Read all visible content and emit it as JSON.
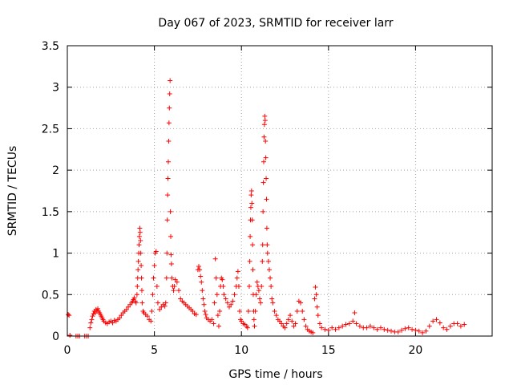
{
  "chart_data": {
    "type": "scatter",
    "title": "Day 067 of 2023, SRMTID for receiver larr",
    "xlabel": "GPS time / hours",
    "ylabel": "SRMTID / TECUs",
    "xlim": [
      0,
      24.4
    ],
    "ylim": [
      0,
      3.5
    ],
    "xticks": [
      0,
      5,
      10,
      15,
      20
    ],
    "xtick_labels": [
      "0",
      "5",
      "10",
      "15",
      "20"
    ],
    "yticks": [
      0,
      0.5,
      1,
      1.5,
      2,
      2.5,
      3,
      3.5
    ],
    "ytick_labels": [
      "0",
      "0.5",
      "1",
      "1.5",
      "2",
      "2.5",
      "3",
      "3.5"
    ],
    "grid": true,
    "marker": "+",
    "color": "#ff0000",
    "series": [
      {
        "name": "SRMTID",
        "points": [
          [
            0.05,
            0.26
          ],
          [
            0.1,
            0.25
          ],
          [
            0.15,
            0.01
          ],
          [
            0.5,
            0.0
          ],
          [
            0.6,
            0.0
          ],
          [
            0.7,
            0.0
          ],
          [
            1.0,
            0.0
          ],
          [
            1.1,
            0.0
          ],
          [
            1.2,
            0.0
          ],
          [
            1.3,
            0.1
          ],
          [
            1.35,
            0.16
          ],
          [
            1.4,
            0.2
          ],
          [
            1.45,
            0.24
          ],
          [
            1.5,
            0.27
          ],
          [
            1.55,
            0.3
          ],
          [
            1.6,
            0.28
          ],
          [
            1.65,
            0.32
          ],
          [
            1.7,
            0.3
          ],
          [
            1.75,
            0.33
          ],
          [
            1.8,
            0.3
          ],
          [
            1.85,
            0.28
          ],
          [
            1.9,
            0.26
          ],
          [
            1.95,
            0.24
          ],
          [
            2.0,
            0.22
          ],
          [
            2.05,
            0.2
          ],
          [
            2.1,
            0.18
          ],
          [
            2.2,
            0.16
          ],
          [
            2.3,
            0.15
          ],
          [
            2.4,
            0.17
          ],
          [
            2.5,
            0.18
          ],
          [
            2.6,
            0.16
          ],
          [
            2.7,
            0.19
          ],
          [
            2.8,
            0.18
          ],
          [
            2.9,
            0.2
          ],
          [
            3.0,
            0.22
          ],
          [
            3.1,
            0.25
          ],
          [
            3.2,
            0.28
          ],
          [
            3.3,
            0.3
          ],
          [
            3.4,
            0.32
          ],
          [
            3.5,
            0.35
          ],
          [
            3.6,
            0.38
          ],
          [
            3.7,
            0.4
          ],
          [
            3.75,
            0.42
          ],
          [
            3.8,
            0.44
          ],
          [
            3.85,
            0.46
          ],
          [
            3.9,
            0.42
          ],
          [
            3.95,
            0.4
          ],
          [
            4.0,
            0.5
          ],
          [
            4.02,
            0.6
          ],
          [
            4.04,
            0.7
          ],
          [
            4.06,
            0.8
          ],
          [
            4.08,
            0.9
          ],
          [
            4.1,
            1.0
          ],
          [
            4.12,
            1.1
          ],
          [
            4.14,
            1.2
          ],
          [
            4.16,
            1.3
          ],
          [
            4.18,
            1.25
          ],
          [
            4.2,
            1.15
          ],
          [
            4.22,
            1.0
          ],
          [
            4.24,
            0.85
          ],
          [
            4.26,
            0.7
          ],
          [
            4.28,
            0.55
          ],
          [
            4.3,
            0.4
          ],
          [
            4.35,
            0.3
          ],
          [
            4.4,
            0.28
          ],
          [
            4.5,
            0.26
          ],
          [
            4.6,
            0.24
          ],
          [
            4.7,
            0.2
          ],
          [
            4.8,
            0.18
          ],
          [
            4.85,
            0.3
          ],
          [
            4.9,
            0.5
          ],
          [
            4.95,
            0.7
          ],
          [
            5.0,
            0.85
          ],
          [
            5.05,
            1.0
          ],
          [
            5.1,
            1.02
          ],
          [
            5.15,
            0.6
          ],
          [
            5.2,
            0.4
          ],
          [
            5.3,
            0.32
          ],
          [
            5.4,
            0.35
          ],
          [
            5.5,
            0.38
          ],
          [
            5.6,
            0.36
          ],
          [
            5.65,
            0.4
          ],
          [
            5.7,
            0.7
          ],
          [
            5.72,
            1.0
          ],
          [
            5.74,
            1.4
          ],
          [
            5.76,
            1.7
          ],
          [
            5.78,
            1.9
          ],
          [
            5.8,
            2.1
          ],
          [
            5.82,
            2.35
          ],
          [
            5.84,
            2.57
          ],
          [
            5.86,
            2.75
          ],
          [
            5.88,
            2.92
          ],
          [
            5.9,
            3.08
          ],
          [
            5.92,
            1.5
          ],
          [
            5.94,
            1.2
          ],
          [
            5.96,
            0.98
          ],
          [
            5.98,
            0.87
          ],
          [
            6.0,
            0.7
          ],
          [
            6.05,
            0.6
          ],
          [
            6.1,
            0.55
          ],
          [
            6.15,
            0.6
          ],
          [
            6.2,
            0.68
          ],
          [
            6.3,
            0.65
          ],
          [
            6.4,
            0.55
          ],
          [
            6.5,
            0.45
          ],
          [
            6.6,
            0.42
          ],
          [
            6.7,
            0.4
          ],
          [
            6.8,
            0.38
          ],
          [
            6.9,
            0.36
          ],
          [
            7.0,
            0.34
          ],
          [
            7.1,
            0.32
          ],
          [
            7.2,
            0.3
          ],
          [
            7.3,
            0.27
          ],
          [
            7.4,
            0.26
          ],
          [
            7.5,
            0.8
          ],
          [
            7.55,
            0.84
          ],
          [
            7.6,
            0.8
          ],
          [
            7.65,
            0.72
          ],
          [
            7.7,
            0.65
          ],
          [
            7.75,
            0.55
          ],
          [
            7.8,
            0.45
          ],
          [
            7.85,
            0.38
          ],
          [
            7.9,
            0.3
          ],
          [
            7.95,
            0.26
          ],
          [
            8.0,
            0.22
          ],
          [
            8.1,
            0.2
          ],
          [
            8.2,
            0.18
          ],
          [
            8.3,
            0.2
          ],
          [
            8.4,
            0.15
          ],
          [
            8.45,
            0.4
          ],
          [
            8.5,
            0.93
          ],
          [
            8.55,
            0.7
          ],
          [
            8.6,
            0.5
          ],
          [
            8.65,
            0.25
          ],
          [
            8.7,
            0.12
          ],
          [
            8.75,
            0.3
          ],
          [
            8.8,
            0.6
          ],
          [
            8.85,
            0.7
          ],
          [
            8.9,
            0.68
          ],
          [
            8.95,
            0.6
          ],
          [
            9.0,
            0.5
          ],
          [
            9.1,
            0.45
          ],
          [
            9.2,
            0.4
          ],
          [
            9.3,
            0.35
          ],
          [
            9.4,
            0.38
          ],
          [
            9.5,
            0.42
          ],
          [
            9.6,
            0.5
          ],
          [
            9.7,
            0.6
          ],
          [
            9.75,
            0.7
          ],
          [
            9.8,
            0.78
          ],
          [
            9.85,
            0.6
          ],
          [
            9.9,
            0.3
          ],
          [
            9.95,
            0.2
          ],
          [
            10.0,
            0.18
          ],
          [
            10.1,
            0.15
          ],
          [
            10.2,
            0.14
          ],
          [
            10.3,
            0.12
          ],
          [
            10.35,
            0.1
          ],
          [
            10.4,
            0.3
          ],
          [
            10.45,
            0.6
          ],
          [
            10.48,
            0.9
          ],
          [
            10.5,
            1.2
          ],
          [
            10.52,
            1.4
          ],
          [
            10.54,
            1.55
          ],
          [
            10.56,
            1.7
          ],
          [
            10.58,
            1.75
          ],
          [
            10.6,
            1.6
          ],
          [
            10.62,
            1.4
          ],
          [
            10.64,
            1.1
          ],
          [
            10.66,
            0.8
          ],
          [
            10.68,
            0.5
          ],
          [
            10.7,
            0.3
          ],
          [
            10.72,
            0.2
          ],
          [
            10.75,
            0.12
          ],
          [
            10.8,
            0.3
          ],
          [
            10.85,
            0.5
          ],
          [
            10.9,
            0.65
          ],
          [
            10.95,
            0.6
          ],
          [
            11.0,
            0.55
          ],
          [
            11.05,
            0.45
          ],
          [
            11.1,
            0.4
          ],
          [
            11.15,
            0.6
          ],
          [
            11.2,
            0.9
          ],
          [
            11.22,
            1.1
          ],
          [
            11.24,
            1.5
          ],
          [
            11.26,
            1.85
          ],
          [
            11.28,
            2.1
          ],
          [
            11.3,
            2.4
          ],
          [
            11.32,
            2.55
          ],
          [
            11.34,
            2.65
          ],
          [
            11.36,
            2.6
          ],
          [
            11.38,
            2.35
          ],
          [
            11.4,
            2.15
          ],
          [
            11.42,
            1.9
          ],
          [
            11.44,
            1.65
          ],
          [
            11.46,
            1.3
          ],
          [
            11.48,
            1.1
          ],
          [
            11.5,
            1.0
          ],
          [
            11.55,
            0.9
          ],
          [
            11.6,
            0.8
          ],
          [
            11.65,
            0.7
          ],
          [
            11.7,
            0.6
          ],
          [
            11.75,
            0.45
          ],
          [
            11.8,
            0.4
          ],
          [
            11.9,
            0.3
          ],
          [
            12.0,
            0.25
          ],
          [
            12.1,
            0.2
          ],
          [
            12.2,
            0.18
          ],
          [
            12.3,
            0.15
          ],
          [
            12.4,
            0.12
          ],
          [
            12.5,
            0.1
          ],
          [
            12.6,
            0.15
          ],
          [
            12.7,
            0.2
          ],
          [
            12.8,
            0.25
          ],
          [
            12.9,
            0.18
          ],
          [
            13.0,
            0.12
          ],
          [
            13.1,
            0.15
          ],
          [
            13.2,
            0.3
          ],
          [
            13.3,
            0.42
          ],
          [
            13.4,
            0.4
          ],
          [
            13.5,
            0.3
          ],
          [
            13.6,
            0.2
          ],
          [
            13.7,
            0.12
          ],
          [
            13.8,
            0.08
          ],
          [
            13.9,
            0.06
          ],
          [
            14.0,
            0.05
          ],
          [
            14.1,
            0.04
          ],
          [
            14.2,
            0.45
          ],
          [
            14.25,
            0.59
          ],
          [
            14.3,
            0.5
          ],
          [
            14.35,
            0.35
          ],
          [
            14.4,
            0.25
          ],
          [
            14.5,
            0.15
          ],
          [
            14.6,
            0.1
          ],
          [
            14.8,
            0.08
          ],
          [
            15.0,
            0.07
          ],
          [
            15.2,
            0.1
          ],
          [
            15.4,
            0.08
          ],
          [
            15.6,
            0.1
          ],
          [
            15.8,
            0.12
          ],
          [
            16.0,
            0.14
          ],
          [
            16.2,
            0.15
          ],
          [
            16.4,
            0.18
          ],
          [
            16.5,
            0.28
          ],
          [
            16.6,
            0.15
          ],
          [
            16.8,
            0.12
          ],
          [
            17.0,
            0.1
          ],
          [
            17.2,
            0.1
          ],
          [
            17.4,
            0.12
          ],
          [
            17.6,
            0.1
          ],
          [
            17.8,
            0.08
          ],
          [
            18.0,
            0.1
          ],
          [
            18.2,
            0.08
          ],
          [
            18.4,
            0.07
          ],
          [
            18.6,
            0.06
          ],
          [
            18.8,
            0.05
          ],
          [
            19.0,
            0.05
          ],
          [
            19.2,
            0.07
          ],
          [
            19.4,
            0.09
          ],
          [
            19.6,
            0.1
          ],
          [
            19.8,
            0.08
          ],
          [
            20.0,
            0.07
          ],
          [
            20.2,
            0.06
          ],
          [
            20.4,
            0.04
          ],
          [
            20.6,
            0.06
          ],
          [
            20.8,
            0.12
          ],
          [
            21.0,
            0.18
          ],
          [
            21.2,
            0.2
          ],
          [
            21.4,
            0.16
          ],
          [
            21.6,
            0.1
          ],
          [
            21.8,
            0.08
          ],
          [
            22.0,
            0.12
          ],
          [
            22.2,
            0.15
          ],
          [
            22.4,
            0.15
          ],
          [
            22.6,
            0.12
          ],
          [
            22.8,
            0.14
          ]
        ]
      }
    ]
  }
}
